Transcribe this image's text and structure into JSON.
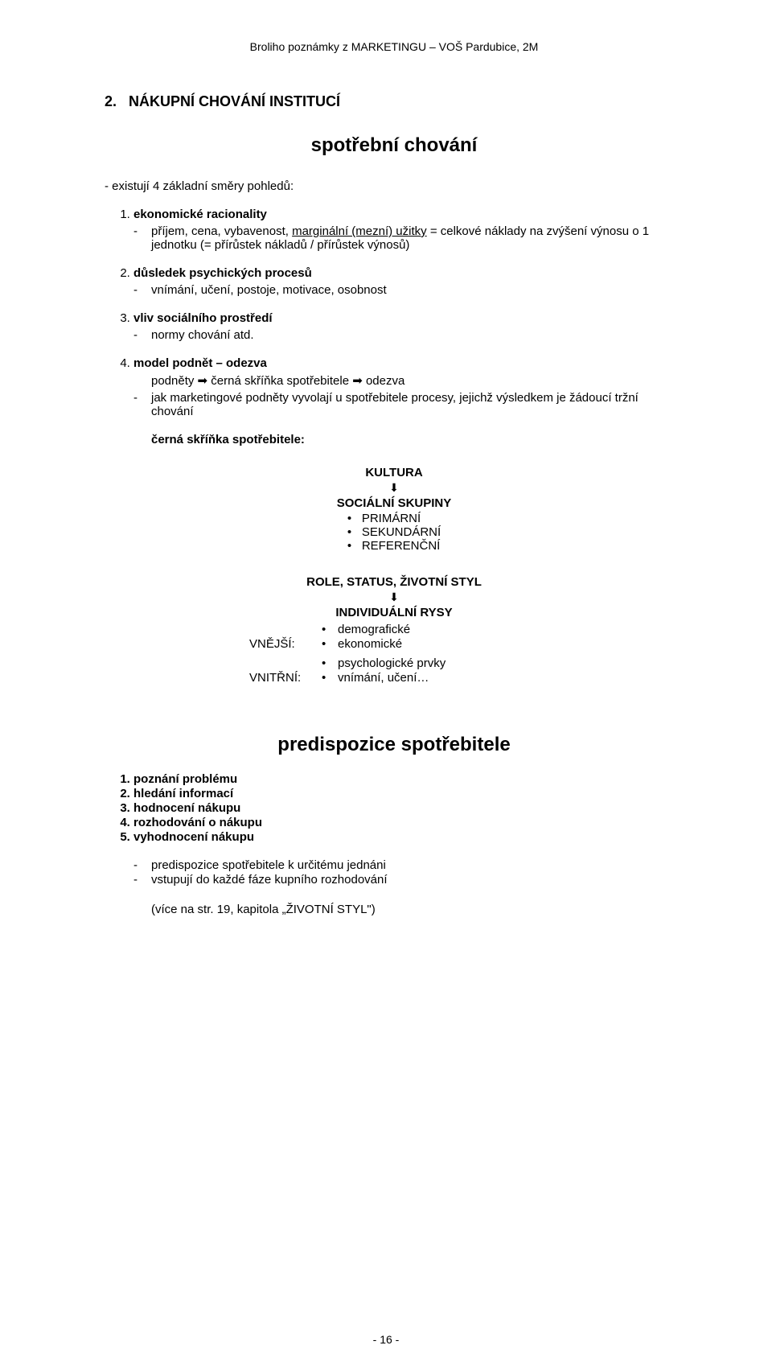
{
  "header": "Broliho poznámky z MARKETINGU – VOŠ Pardubice, 2M",
  "section_num": "2.",
  "section_title": "NÁKUPNÍ CHOVÁNÍ INSTITUCÍ",
  "main_heading": "spotřební chování",
  "intro": "- existují 4 základní směry pohledů:",
  "items": [
    {
      "title": "ekonomické racionality",
      "lines": [
        "příjem, cena, vybavenost, <u>marginální (mezní) užitky</u> = celkové náklady na zvýšení výnosu o 1 jednotku (= přírůstek nákladů / přírůstek výnosů)"
      ]
    },
    {
      "title": "důsledek psychických procesů",
      "lines": [
        "vnímání, učení, postoje, motivace, osobnost"
      ]
    },
    {
      "title": "vliv sociálního prostředí",
      "lines": [
        "normy chování atd."
      ]
    },
    {
      "title": "model podnět – odezva",
      "pre": "podněty ➡ černá skříňka spotřebitele ➡ odezva",
      "lines": [
        "jak marketingové podněty vyvolají u spotřebitele procesy, jejichž výsledkem je žádoucí tržní chování"
      ]
    }
  ],
  "box_label": "černá skříňka spotřebitele:",
  "culture": {
    "title": "KULTURA",
    "soc_title": "SOCIÁLNÍ SKUPINY",
    "soc_items": [
      "PRIMÁRNÍ",
      "SEKUNDÁRNÍ",
      "REFERENČNÍ"
    ]
  },
  "role": {
    "head": "ROLE, STATUS, ŽIVOTNÍ STYL",
    "indiv": "INDIVIDUÁLNÍ RYSY",
    "vnejsi_label": "VNĚJŠÍ:",
    "vnejsi_items": [
      "demografické",
      "ekonomické"
    ],
    "vnitrni_label": "VNITŘNÍ:",
    "vnitrni_items": [
      "psychologické prvky",
      "vnímání, učení…"
    ]
  },
  "predis_head": "predispozice spotřebitele",
  "predis_list": [
    "poznání problému",
    "hledání informací",
    "hodnocení nákupu",
    "rozhodování o nákupu",
    "vyhodnocení nákupu"
  ],
  "notes": [
    "predispozice spotřebitele k určitému jednáni",
    "vstupují do každé fáze kupního rozhodování"
  ],
  "ref": "(více na str. 19, kapitola „ŽIVOTNÍ STYL\")",
  "footer": "- 16 -"
}
